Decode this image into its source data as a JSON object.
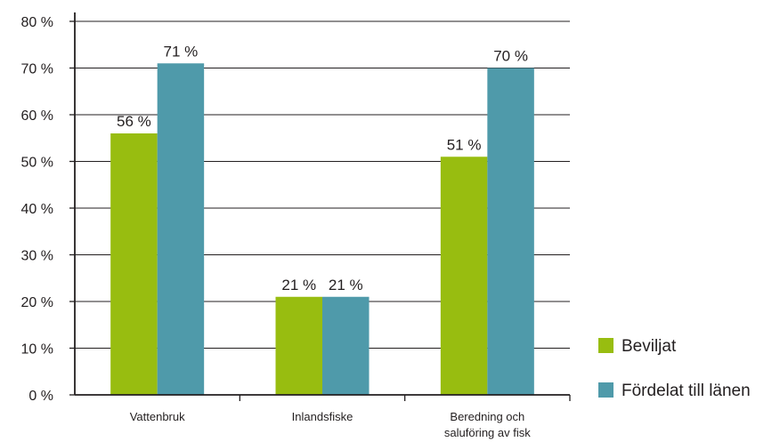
{
  "chart_data": {
    "type": "bar",
    "categories": [
      "Vattenbruk",
      "Inlandsfiske",
      "Beredning och saluföring av fisk"
    ],
    "category_lines": [
      [
        "Vattenbruk"
      ],
      [
        "Inlandsfiske"
      ],
      [
        "Beredning och",
        "saluföring av fisk"
      ]
    ],
    "series": [
      {
        "name": "Beviljat",
        "values": [
          56,
          21,
          51
        ],
        "labels": [
          "56 %",
          "21 %",
          "51 %"
        ],
        "color": "#98bd10"
      },
      {
        "name": "Fördelat till länen",
        "values": [
          71,
          21,
          70
        ],
        "labels": [
          "71 %",
          "21 %",
          "70 %"
        ],
        "color": "#4f9aaa"
      }
    ],
    "y_ticks": [
      "0 %",
      "10 %",
      "20 %",
      "30 %",
      "40 %",
      "50 %",
      "60 %",
      "70 %",
      "80 %"
    ],
    "ylim": [
      0,
      80
    ],
    "y_step": 10,
    "grid": true,
    "legend_position": "right"
  }
}
